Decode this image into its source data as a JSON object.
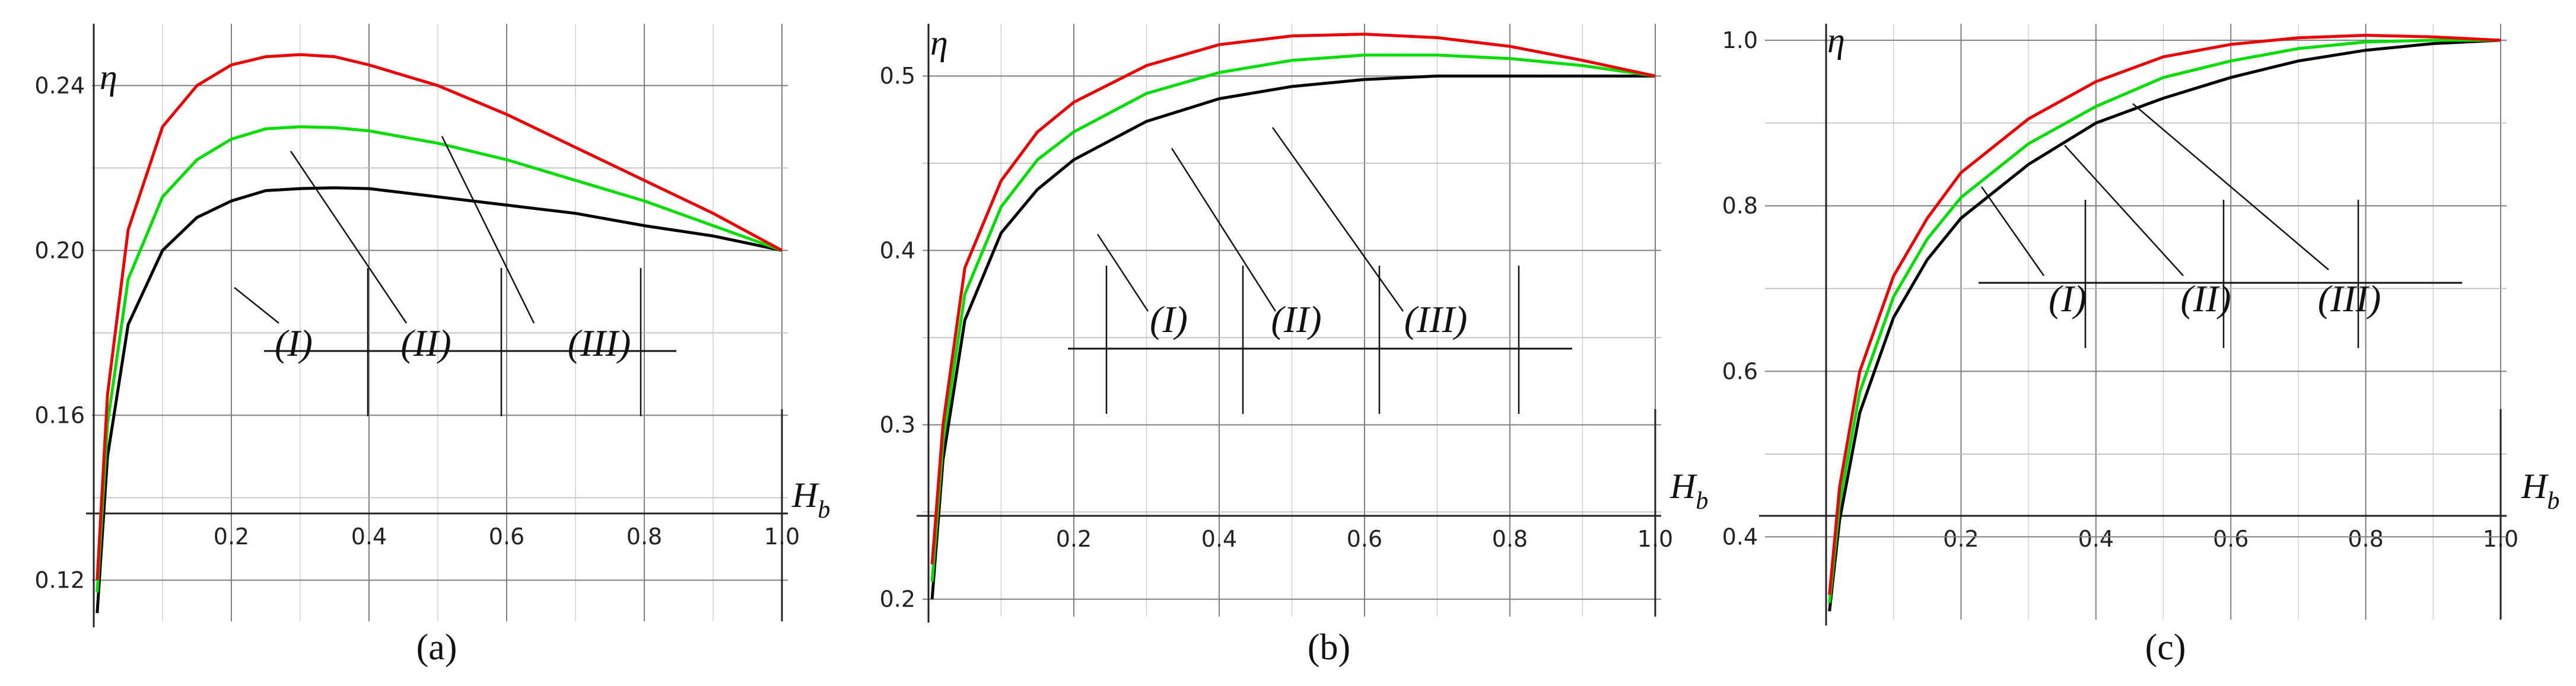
{
  "colors": {
    "I": "#000000",
    "II": "#00dd00",
    "III": "#ee0000",
    "grid": "#7f7f7f"
  },
  "chart_data": [
    {
      "type": "line",
      "panel_label": "(a)",
      "xlabel": "H_b",
      "ylabel": "η",
      "xlim": [
        0.0,
        1.0
      ],
      "ylim": [
        0.11,
        0.255
      ],
      "grid": true,
      "x_ticks": [
        "0.2",
        "0.4",
        "0.6",
        "0.8",
        "1.0"
      ],
      "y_ticks": [
        "0.12",
        "0.16",
        "0.20",
        "0.24"
      ],
      "curve_labels": [
        "(I)",
        "(II)",
        "(III)"
      ],
      "series": [
        {
          "name": "(I)",
          "color": "#000000",
          "x": [
            0.005,
            0.02,
            0.05,
            0.1,
            0.15,
            0.2,
            0.25,
            0.3,
            0.35,
            0.4,
            0.5,
            0.6,
            0.7,
            0.8,
            0.9,
            1.0
          ],
          "y": [
            0.112,
            0.15,
            0.182,
            0.2,
            0.208,
            0.212,
            0.2145,
            0.215,
            0.2152,
            0.215,
            0.213,
            0.211,
            0.209,
            0.206,
            0.2035,
            0.2
          ]
        },
        {
          "name": "(II)",
          "color": "#00dd00",
          "x": [
            0.005,
            0.02,
            0.05,
            0.1,
            0.15,
            0.2,
            0.25,
            0.3,
            0.35,
            0.4,
            0.5,
            0.6,
            0.7,
            0.8,
            0.9,
            1.0
          ],
          "y": [
            0.117,
            0.158,
            0.193,
            0.213,
            0.222,
            0.227,
            0.2295,
            0.23,
            0.2298,
            0.229,
            0.226,
            0.222,
            0.217,
            0.212,
            0.206,
            0.2
          ]
        },
        {
          "name": "(III)",
          "color": "#ee0000",
          "x": [
            0.005,
            0.02,
            0.05,
            0.1,
            0.15,
            0.2,
            0.25,
            0.3,
            0.35,
            0.4,
            0.5,
            0.6,
            0.7,
            0.8,
            0.9,
            1.0
          ],
          "y": [
            0.12,
            0.165,
            0.205,
            0.23,
            0.24,
            0.245,
            0.247,
            0.2475,
            0.247,
            0.245,
            0.24,
            0.233,
            0.225,
            0.217,
            0.209,
            0.2
          ]
        }
      ]
    },
    {
      "type": "line",
      "panel_label": "(b)",
      "xlabel": "H_b",
      "ylabel": "η",
      "xlim": [
        0.0,
        1.0
      ],
      "ylim": [
        0.19,
        0.53
      ],
      "grid": true,
      "x_ticks": [
        "0.2",
        "0.4",
        "0.6",
        "0.8",
        "1.0"
      ],
      "y_ticks": [
        "0.2",
        "0.3",
        "0.4",
        "0.5"
      ],
      "curve_labels": [
        "(I)",
        "(II)",
        "(III)"
      ],
      "series": [
        {
          "name": "(I)",
          "color": "#000000",
          "x": [
            0.005,
            0.02,
            0.05,
            0.1,
            0.15,
            0.2,
            0.3,
            0.4,
            0.5,
            0.6,
            0.7,
            0.8,
            0.9,
            1.0
          ],
          "y": [
            0.2,
            0.28,
            0.36,
            0.41,
            0.435,
            0.452,
            0.474,
            0.487,
            0.494,
            0.498,
            0.5,
            0.5,
            0.5,
            0.5
          ]
        },
        {
          "name": "(II)",
          "color": "#00dd00",
          "x": [
            0.005,
            0.02,
            0.05,
            0.1,
            0.15,
            0.2,
            0.3,
            0.4,
            0.5,
            0.6,
            0.7,
            0.8,
            0.9,
            1.0
          ],
          "y": [
            0.21,
            0.29,
            0.375,
            0.425,
            0.452,
            0.468,
            0.49,
            0.502,
            0.509,
            0.512,
            0.512,
            0.51,
            0.506,
            0.5
          ]
        },
        {
          "name": "(III)",
          "color": "#ee0000",
          "x": [
            0.005,
            0.02,
            0.05,
            0.1,
            0.15,
            0.2,
            0.3,
            0.4,
            0.5,
            0.6,
            0.7,
            0.8,
            0.9,
            1.0
          ],
          "y": [
            0.22,
            0.3,
            0.39,
            0.44,
            0.468,
            0.485,
            0.506,
            0.518,
            0.523,
            0.524,
            0.522,
            0.517,
            0.509,
            0.5
          ]
        }
      ]
    },
    {
      "type": "line",
      "panel_label": "(c)",
      "xlabel": "H_b",
      "ylabel": "η",
      "xlim": [
        0.0,
        1.0
      ],
      "ylim": [
        0.3,
        1.02
      ],
      "grid": true,
      "x_ticks": [
        "0.2",
        "0.4",
        "0.6",
        "0.8",
        "1.0"
      ],
      "y_ticks": [
        "0.4",
        "0.6",
        "0.8",
        "1.0"
      ],
      "curve_labels": [
        "(I)",
        "(II)",
        "(III)"
      ],
      "series": [
        {
          "name": "(I)",
          "color": "#000000",
          "x": [
            0.005,
            0.02,
            0.05,
            0.1,
            0.15,
            0.2,
            0.3,
            0.4,
            0.5,
            0.6,
            0.7,
            0.8,
            0.9,
            1.0
          ],
          "y": [
            0.31,
            0.42,
            0.55,
            0.665,
            0.735,
            0.785,
            0.85,
            0.9,
            0.93,
            0.955,
            0.975,
            0.988,
            0.996,
            1.0
          ]
        },
        {
          "name": "(II)",
          "color": "#00dd00",
          "x": [
            0.005,
            0.02,
            0.05,
            0.1,
            0.15,
            0.2,
            0.3,
            0.4,
            0.5,
            0.6,
            0.7,
            0.8,
            0.9,
            1.0
          ],
          "y": [
            0.32,
            0.44,
            0.575,
            0.69,
            0.76,
            0.81,
            0.875,
            0.92,
            0.955,
            0.975,
            0.99,
            0.998,
            1.0,
            1.0
          ]
        },
        {
          "name": "(III)",
          "color": "#ee0000",
          "x": [
            0.005,
            0.02,
            0.05,
            0.1,
            0.15,
            0.2,
            0.3,
            0.4,
            0.5,
            0.6,
            0.7,
            0.8,
            0.9,
            1.0
          ],
          "y": [
            0.33,
            0.46,
            0.6,
            0.715,
            0.785,
            0.84,
            0.905,
            0.95,
            0.98,
            0.995,
            1.003,
            1.006,
            1.004,
            1.0
          ]
        }
      ]
    }
  ]
}
